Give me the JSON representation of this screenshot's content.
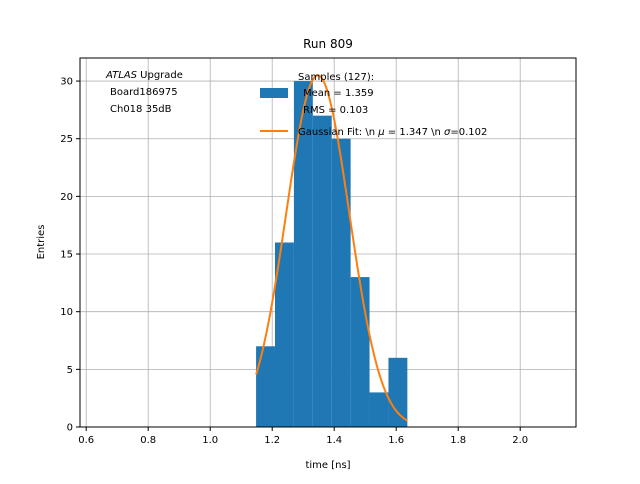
{
  "chart_data": {
    "type": "bar",
    "title": "Run 809",
    "xlabel": "time [ns]",
    "ylabel": "Entries",
    "xlim": [
      0.58,
      2.18
    ],
    "ylim": [
      0,
      32
    ],
    "xticks": [
      0.6,
      0.8,
      1.0,
      1.2,
      1.4,
      1.6,
      1.8,
      2.0
    ],
    "yticks": [
      0,
      5,
      10,
      15,
      20,
      25,
      30
    ],
    "xtick_labels": [
      "0.6",
      "0.8",
      "1.0",
      "1.2",
      "1.4",
      "1.6",
      "1.8",
      "2.0"
    ],
    "ytick_labels": [
      "0",
      "5",
      "10",
      "15",
      "20",
      "25",
      "30"
    ],
    "grid": true,
    "histogram": {
      "bin_edges": [
        1.148,
        1.209,
        1.27,
        1.331,
        1.392,
        1.453,
        1.514,
        1.575,
        1.636
      ],
      "counts": [
        7,
        16,
        30,
        27,
        25,
        13,
        3,
        6
      ],
      "color": "#1f77b4"
    },
    "fit": {
      "color": "#ff7f0e",
      "mu": 1.347,
      "sigma": 0.102,
      "amplitude": 30.5,
      "x_range": [
        1.148,
        1.636
      ]
    },
    "annotation": {
      "atlas_word": "ATLAS",
      "upgrade_word": " Upgrade",
      "line2": "Board186975",
      "line3": "Ch018 35dB"
    },
    "legend": {
      "location": "upper-right",
      "samples_title": "Samples (127):",
      "samples_mean": "Mean = 1.359",
      "samples_rms": "RMS = 0.103",
      "fit_prefix": "Gaussian Fit: \\n ",
      "fit_mu_sym": "μ",
      "fit_mu_val": " = 1.347 \\n ",
      "fit_sigma_sym": "σ",
      "fit_sigma_val": "=0.102"
    }
  }
}
